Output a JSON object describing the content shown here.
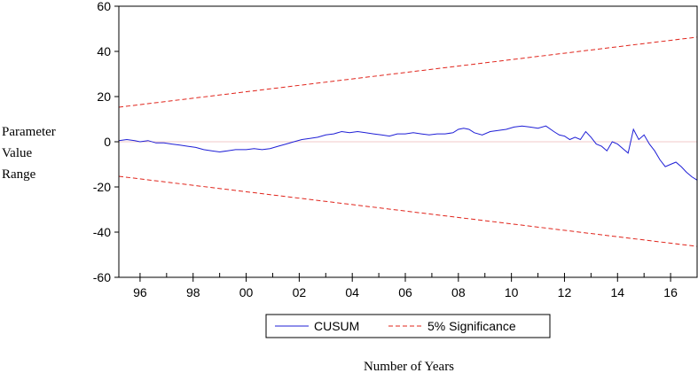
{
  "chart_data": {
    "type": "line",
    "title": "",
    "xlabel": "Number of Years",
    "ylabel_lines": [
      "Parameter",
      "Value",
      "Range"
    ],
    "x_tick_labels": [
      "96",
      "98",
      "00",
      "02",
      "04",
      "06",
      "08",
      "10",
      "12",
      "14",
      "16"
    ],
    "x_tick_years": [
      1996,
      1998,
      2000,
      2002,
      2004,
      2006,
      2008,
      2010,
      2012,
      2014,
      2016
    ],
    "y_tick_labels": [
      "60",
      "40",
      "20",
      "0",
      "-20",
      "-40",
      "-60"
    ],
    "y_tick_values": [
      60,
      40,
      20,
      0,
      -20,
      -40,
      -60
    ],
    "xlim": [
      1995.2,
      2017.0
    ],
    "ylim": [
      -60,
      60
    ],
    "grid": false,
    "zero_line": true,
    "legend_position": "bottom-center",
    "colors": {
      "cusum": "#1f1fd6",
      "significance": "#e0241b",
      "zero_line": "#f0c8c8"
    },
    "series": [
      {
        "name": "CUSUM",
        "style": "solid",
        "x": [
          1995.2,
          1995.5,
          1995.8,
          1996.0,
          1996.3,
          1996.6,
          1996.9,
          1997.2,
          1997.5,
          1997.8,
          1998.1,
          1998.4,
          1998.7,
          1999.0,
          1999.3,
          1999.6,
          2000.0,
          2000.3,
          2000.6,
          2000.9,
          2001.2,
          2001.5,
          2001.8,
          2002.1,
          2002.4,
          2002.7,
          2003.0,
          2003.3,
          2003.6,
          2003.9,
          2004.2,
          2004.5,
          2004.8,
          2005.1,
          2005.4,
          2005.7,
          2006.0,
          2006.3,
          2006.6,
          2006.9,
          2007.2,
          2007.5,
          2007.8,
          2008.0,
          2008.2,
          2008.4,
          2008.6,
          2008.9,
          2009.2,
          2009.5,
          2009.8,
          2010.1,
          2010.4,
          2010.7,
          2011.0,
          2011.3,
          2011.6,
          2011.8,
          2012.0,
          2012.2,
          2012.4,
          2012.6,
          2012.8,
          2013.0,
          2013.2,
          2013.4,
          2013.6,
          2013.8,
          2014.0,
          2014.2,
          2014.4,
          2014.6,
          2014.8,
          2015.0,
          2015.2,
          2015.4,
          2015.6,
          2015.8,
          2016.0,
          2016.2,
          2016.4,
          2016.6,
          2016.8,
          2017.0
        ],
        "values": [
          0.5,
          1.0,
          0.5,
          0.0,
          0.5,
          -0.5,
          -0.5,
          -1.0,
          -1.5,
          -2.0,
          -2.5,
          -3.5,
          -4.0,
          -4.5,
          -4.0,
          -3.5,
          -3.5,
          -3.0,
          -3.5,
          -3.0,
          -2.0,
          -1.0,
          0.0,
          1.0,
          1.5,
          2.0,
          3.0,
          3.5,
          4.5,
          4.0,
          4.5,
          4.0,
          3.5,
          3.0,
          2.5,
          3.5,
          3.5,
          4.0,
          3.5,
          3.0,
          3.5,
          3.5,
          4.0,
          5.5,
          6.0,
          5.5,
          4.0,
          3.0,
          4.5,
          5.0,
          5.5,
          6.5,
          7.0,
          6.5,
          6.0,
          7.0,
          4.5,
          3.0,
          2.5,
          1.0,
          2.0,
          1.0,
          4.5,
          2.0,
          -1.0,
          -2.0,
          -4.0,
          0.0,
          -1.0,
          -3.0,
          -5.0,
          5.5,
          1.0,
          3.0,
          -1.0,
          -4.0,
          -8.0,
          -11.0,
          -10.0,
          -9.0,
          -11.0,
          -13.5,
          -15.5,
          -17.0
        ]
      },
      {
        "name": "5% Significance",
        "style": "dashed",
        "x": [
          1995.2,
          2017.0
        ],
        "values": [
          15.3,
          46.3
        ]
      },
      {
        "name": "5% Significance",
        "style": "dashed",
        "legend": false,
        "x": [
          1995.2,
          2017.0
        ],
        "values": [
          -15.3,
          -46.3
        ]
      }
    ]
  }
}
